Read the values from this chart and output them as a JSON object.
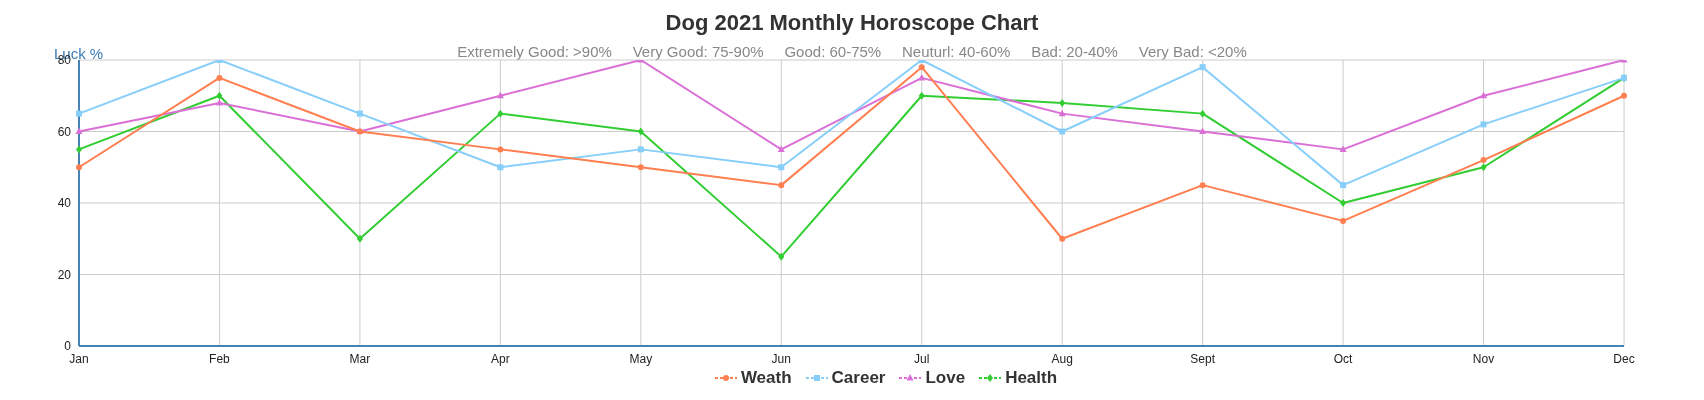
{
  "chart_data": {
    "type": "line",
    "title": "Dog 2021 Monthly Horoscope Chart",
    "subtitle": "Extremely Good: >90%     Very Good: 75-90%     Good: 60-75%     Neuturl: 40-60%     Bad: 20-40%     Very Bad: <20%",
    "ylabel": "Luck %",
    "categories": [
      "Jan",
      "Feb",
      "Mar",
      "Apr",
      "May",
      "Jun",
      "Jul",
      "Aug",
      "Sept",
      "Oct",
      "Nov",
      "Dec"
    ],
    "series": [
      {
        "name": "Weath",
        "color": "#ff7f50",
        "marker": "circle",
        "values": [
          50,
          75,
          60,
          55,
          50,
          45,
          78,
          30,
          45,
          35,
          52,
          70
        ]
      },
      {
        "name": "Career",
        "color": "#87cefa",
        "marker": "square",
        "values": [
          65,
          80,
          65,
          50,
          55,
          50,
          80,
          60,
          78,
          45,
          62,
          75
        ]
      },
      {
        "name": "Love",
        "color": "#da70d6",
        "marker": "triangle",
        "values": [
          60,
          68,
          60,
          70,
          80,
          55,
          75,
          65,
          60,
          55,
          70,
          80
        ]
      },
      {
        "name": "Health",
        "color": "#32cd32",
        "marker": "diamond",
        "values": [
          55,
          70,
          30,
          65,
          60,
          25,
          70,
          68,
          65,
          40,
          50,
          75
        ]
      }
    ],
    "ylim": [
      0,
      80
    ],
    "yticks": [
      0,
      20,
      40,
      60,
      80
    ],
    "grid": true,
    "legend": "bottom"
  }
}
